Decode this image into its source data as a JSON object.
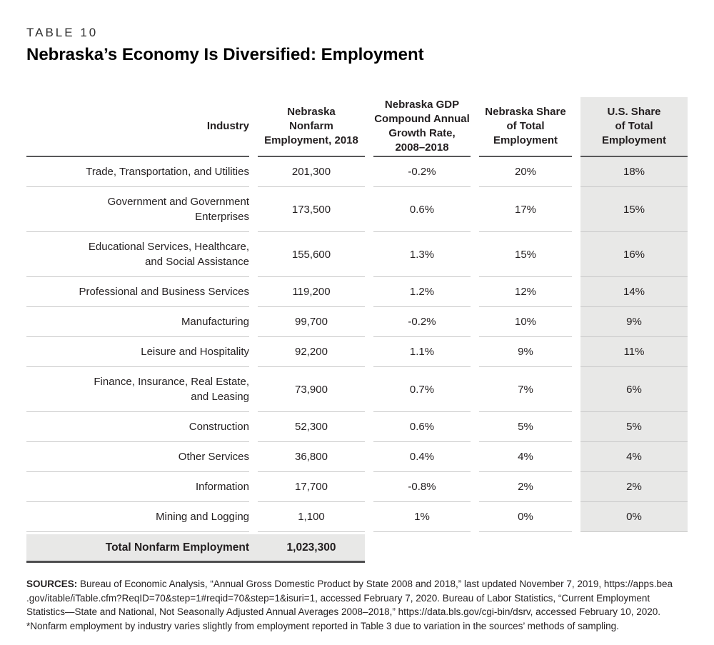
{
  "header": {
    "table_label": "TABLE 10",
    "title": "Nebraska’s Economy Is Diversified: Employment"
  },
  "table": {
    "columns": [
      {
        "label": "Industry"
      },
      {
        "label": "Nebraska\nNonfarm\nEmployment, 2018"
      },
      {
        "label": "Nebraska GDP\nCompound Annual\nGrowth Rate,\n2008–2018"
      },
      {
        "label": "Nebraska Share\nof Total\nEmployment"
      },
      {
        "label": "U.S. Share\nof Total\nEmployment"
      }
    ],
    "rows": [
      {
        "industry": "Trade, Transportation, and Utilities",
        "employment": "201,300",
        "growth": "-0.2%",
        "ne_share": "20%",
        "us_share": "18%"
      },
      {
        "industry": "Government and Government\nEnterprises",
        "employment": "173,500",
        "growth": "0.6%",
        "ne_share": "17%",
        "us_share": "15%"
      },
      {
        "industry": "Educational Services, Healthcare,\nand Social Assistance",
        "employment": "155,600",
        "growth": "1.3%",
        "ne_share": "15%",
        "us_share": "16%"
      },
      {
        "industry": "Professional and Business Services",
        "employment": "119,200",
        "growth": "1.2%",
        "ne_share": "12%",
        "us_share": "14%"
      },
      {
        "industry": "Manufacturing",
        "employment": "99,700",
        "growth": "-0.2%",
        "ne_share": "10%",
        "us_share": "9%"
      },
      {
        "industry": "Leisure and Hospitality",
        "employment": "92,200",
        "growth": "1.1%",
        "ne_share": "9%",
        "us_share": "11%"
      },
      {
        "industry": "Finance, Insurance, Real Estate,\nand Leasing",
        "employment": "73,900",
        "growth": "0.7%",
        "ne_share": "7%",
        "us_share": "6%"
      },
      {
        "industry": "Construction",
        "employment": "52,300",
        "growth": "0.6%",
        "ne_share": "5%",
        "us_share": "5%"
      },
      {
        "industry": "Other Services",
        "employment": "36,800",
        "growth": "0.4%",
        "ne_share": "4%",
        "us_share": "4%"
      },
      {
        "industry": "Information",
        "employment": "17,700",
        "growth": "-0.8%",
        "ne_share": "2%",
        "us_share": "2%"
      },
      {
        "industry": "Mining and Logging",
        "employment": "1,100",
        "growth": "1%",
        "ne_share": "0%",
        "us_share": "0%"
      }
    ],
    "total": {
      "label": "Total Nonfarm Employment",
      "value": "1,023,300"
    }
  },
  "footer": {
    "sources_label": "SOURCES:",
    "line1_rest": " Bureau of Economic Analysis, “Annual Gross Domestic Product by State 2008 and 2018,” last updated November 7, 2019, https://apps.bea",
    "lines": [
      ".gov/itable/iTable.cfm?ReqID=70&step=1#reqid=70&step=1&isuri=1, accessed February 7, 2020. Bureau of Labor Statistics, “Current Employment",
      "Statistics—State and National, Not Seasonally Adjusted Annual Averages 2008–2018,” https://data.bls.gov/cgi-bin/dsrv, accessed February 10, 2020.",
      "*Nonfarm employment by industry varies slightly from employment reported in Table 3 due to variation in the sources’ methods of sampling."
    ]
  },
  "colors": {
    "shade": "#e8e8e7",
    "rule_dark": "#58585a",
    "rule_light": "#c9c9c9",
    "total_rule": "#4d4d4f",
    "text": "#231f20"
  }
}
